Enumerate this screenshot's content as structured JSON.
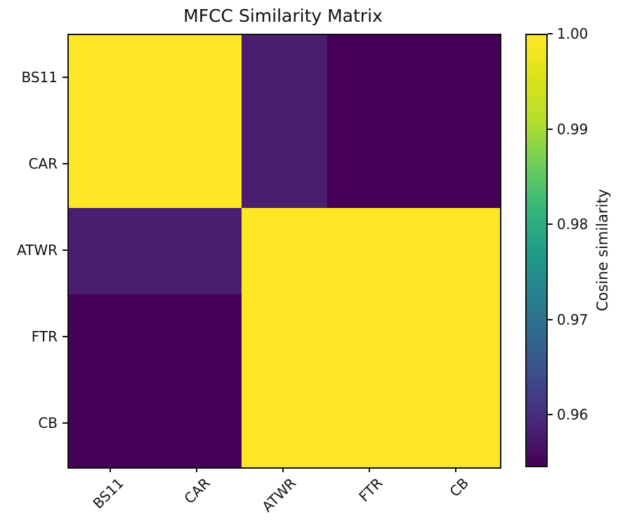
{
  "figure": {
    "background": "#ffffff"
  },
  "chart_data": {
    "type": "heatmap",
    "title": "MFCC Similarity Matrix",
    "x_tick_labels": [
      "BS11",
      "CAR",
      "ATWR",
      "FTR",
      "CB"
    ],
    "y_tick_labels": [
      "BS11",
      "CAR",
      "ATWR",
      "FTR",
      "CB"
    ],
    "matrix": [
      [
        1.0,
        1.0,
        0.958,
        0.954,
        0.954
      ],
      [
        1.0,
        1.0,
        0.958,
        0.954,
        0.954
      ],
      [
        0.958,
        0.958,
        1.0,
        1.0,
        1.0
      ],
      [
        0.954,
        0.954,
        1.0,
        1.0,
        1.0
      ],
      [
        0.954,
        0.954,
        1.0,
        1.0,
        1.0
      ]
    ],
    "colormap": "viridis",
    "vmin": 0.9545,
    "vmax": 1.0,
    "grid": false,
    "x_tick_rotation_deg": 45,
    "colorbar": {
      "label": "Cosine similarity",
      "position": "right",
      "tick_labels": [
        "1.00",
        "0.99",
        "0.98",
        "0.97",
        "0.96"
      ],
      "tick_values": [
        1.0,
        0.99,
        0.98,
        0.97,
        0.96
      ]
    }
  },
  "render": {
    "cell_colors": [
      [
        "#fde725",
        "#fde725",
        "#4a1d6e",
        "#450158",
        "#450158"
      ],
      [
        "#fde725",
        "#fde725",
        "#4a1d6e",
        "#450158",
        "#450158"
      ],
      [
        "#4a1d6e",
        "#4a1d6e",
        "#fde725",
        "#fde725",
        "#fde725"
      ],
      [
        "#450158",
        "#450158",
        "#fde725",
        "#fde725",
        "#fde725"
      ],
      [
        "#450158",
        "#450158",
        "#fde725",
        "#fde725",
        "#fde725"
      ]
    ],
    "viridis_stops_bottom_to_top": [
      "#440154",
      "#482878",
      "#3e4989",
      "#31688e",
      "#26828e",
      "#1f9e89",
      "#35b779",
      "#6dcd59",
      "#b4de2c",
      "#dce319",
      "#fde725"
    ],
    "accent_colors": {
      "max_yellow": "#fde725",
      "mid_purple": "#4a1d6e",
      "min_purple": "#450158",
      "text": "#111111"
    }
  }
}
